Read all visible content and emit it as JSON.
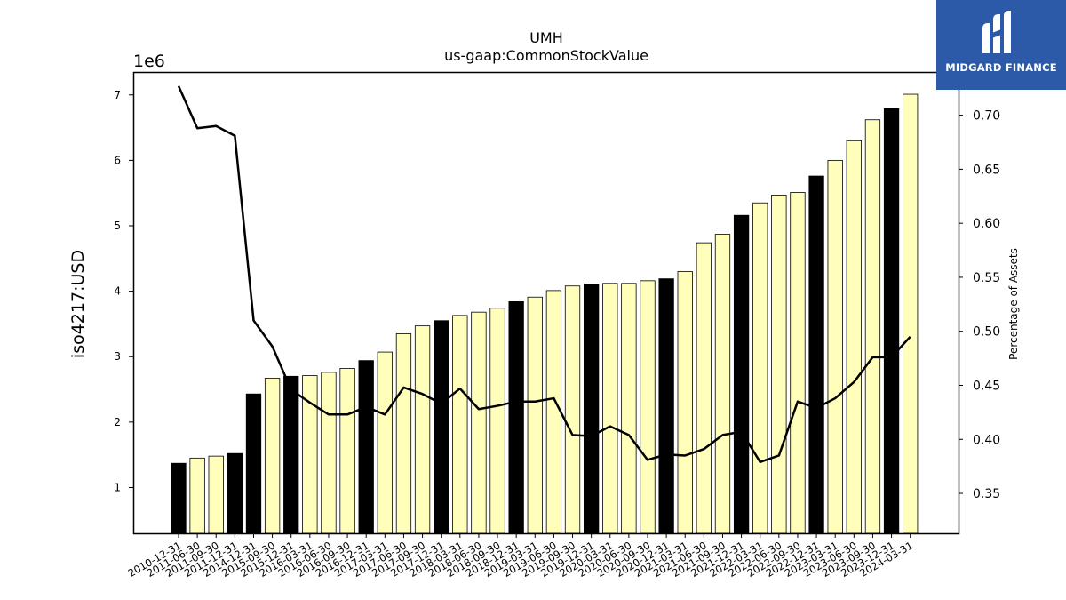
{
  "chart_data": {
    "type": "bar+line",
    "title": "UMH",
    "subtitle": "us-gaap:CommonStockValue",
    "ylabel_left": "iso4217:USD",
    "ylabel_right": "Percentage of Assets",
    "y_offset_label": "1e6",
    "ylim_left": [
      0.3,
      7.35
    ],
    "ylim_right": [
      0.313,
      0.74
    ],
    "yticks_left": [
      1,
      2,
      3,
      4,
      5,
      6,
      7
    ],
    "yticks_right": [
      0.35,
      0.4,
      0.45,
      0.5,
      0.55,
      0.6,
      0.65,
      0.7
    ],
    "categories": [
      "2010-12-31",
      "2011-06-30",
      "2011-09-30",
      "2011-12-31",
      "2014-12-31",
      "2015-09-30",
      "2015-12-31",
      "2016-03-31",
      "2016-06-30",
      "2016-09-30",
      "2016-12-31",
      "2017-03-31",
      "2017-06-30",
      "2017-09-30",
      "2017-12-31",
      "2018-03-31",
      "2018-06-30",
      "2018-09-30",
      "2018-12-31",
      "2019-03-31",
      "2019-06-30",
      "2019-09-30",
      "2019-12-31",
      "2020-03-31",
      "2020-06-30",
      "2020-09-30",
      "2020-12-31",
      "2021-03-31",
      "2021-06-30",
      "2021-09-30",
      "2021-12-31",
      "2022-03-31",
      "2022-06-30",
      "2022-09-30",
      "2022-12-31",
      "2023-03-31",
      "2023-06-30",
      "2023-09-30",
      "2023-12-31",
      "2024-03-31"
    ],
    "series": [
      {
        "type": "bar",
        "values": [
          1.37,
          1.45,
          1.48,
          1.52,
          2.43,
          2.67,
          2.7,
          2.71,
          2.76,
          2.82,
          2.94,
          3.07,
          3.35,
          3.47,
          3.55,
          3.63,
          3.68,
          3.74,
          3.84,
          3.91,
          4.01,
          4.08,
          4.11,
          4.12,
          4.12,
          4.16,
          4.19,
          4.3,
          4.74,
          4.87,
          5.16,
          5.35,
          5.47,
          5.51,
          5.76,
          6.0,
          6.3,
          6.62,
          6.79,
          7.01
        ],
        "highlight": [
          true,
          false,
          false,
          true,
          true,
          false,
          true,
          false,
          false,
          false,
          true,
          false,
          false,
          false,
          true,
          false,
          false,
          false,
          true,
          false,
          false,
          false,
          true,
          false,
          false,
          false,
          true,
          false,
          false,
          false,
          true,
          false,
          false,
          false,
          true,
          false,
          false,
          false,
          true,
          false
        ]
      },
      {
        "type": "line",
        "axis": "right",
        "values": [
          0.727,
          0.688,
          0.69,
          0.681,
          0.51,
          0.486,
          0.446,
          0.434,
          0.423,
          0.423,
          0.43,
          0.423,
          0.448,
          0.442,
          0.433,
          0.447,
          0.428,
          0.431,
          0.435,
          0.435,
          0.438,
          0.404,
          0.403,
          0.412,
          0.404,
          0.381,
          0.386,
          0.385,
          0.391,
          0.404,
          0.407,
          0.379,
          0.385,
          0.435,
          0.429,
          0.438,
          0.453,
          0.476,
          0.476,
          0.495
        ]
      }
    ],
    "colors": {
      "bar_fill": "#ffffbb",
      "bar_highlight": "#000000",
      "line": "#000000"
    }
  },
  "logo": {
    "text": "MIDGARD FINANCE",
    "bg": "#2c5aa8"
  }
}
